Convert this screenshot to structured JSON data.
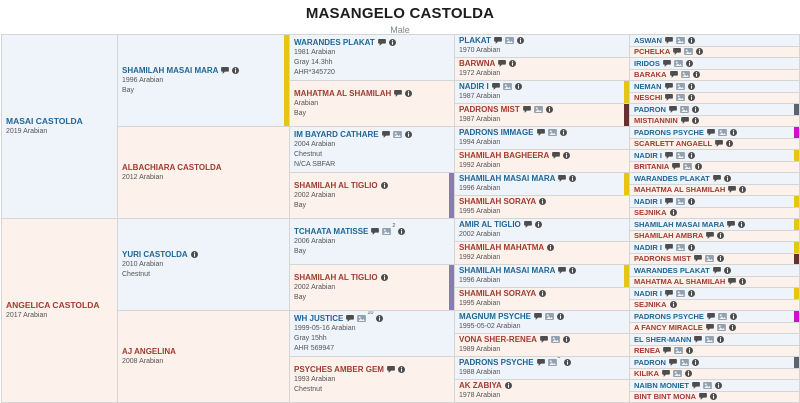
{
  "header": {
    "title": "MASANGELO CASTOLDA",
    "subtitle": "Male"
  },
  "colors": {
    "sire_bg": "#eff3fa",
    "dam_bg": "#fdf1ec",
    "sire_name": "#1f6697",
    "dam_name": "#a23b30",
    "detail_text": "#555555",
    "border": "#d5d5d5",
    "stripes": {
      "yellow": "#e5c614",
      "purple": "#867ab8",
      "maroon": "#66302e",
      "magenta": "#cf0fcf",
      "slate": "#5a6370"
    }
  },
  "pedigree": {
    "generations": [
      {
        "cells": [
          {
            "name": "MASAI CASTOLDA",
            "details": [
              "2019 Arabian"
            ],
            "line": "sire",
            "icons": []
          },
          {
            "name": "ANGELICA CASTOLDA",
            "details": [
              "2017 Arabian"
            ],
            "line": "dam",
            "icons": []
          }
        ]
      },
      {
        "cells": [
          {
            "name": "SHAMILAH MASAI MARA",
            "details": [
              "1996 Arabian",
              "Bay"
            ],
            "line": "sire",
            "icons": [
              "comment",
              "info"
            ],
            "stripe": "yellow"
          },
          {
            "name": "ALBACHIARA CASTOLDA",
            "details": [
              "2012 Arabian"
            ],
            "line": "dam",
            "icons": []
          },
          {
            "name": "YURI CASTOLDA",
            "details": [
              "2010 Arabian",
              "Chestnut"
            ],
            "line": "sire",
            "icons": [
              "info"
            ]
          },
          {
            "name": "AJ ANGELINA",
            "details": [
              "2008 Arabian"
            ],
            "line": "dam",
            "icons": []
          }
        ]
      },
      {
        "cells": [
          {
            "name": "WARANDES PLAKAT",
            "details": [
              "1981 Arabian",
              "Gray 14.3hh",
              "AHR*345720"
            ],
            "line": "sire",
            "icons": [
              "comment",
              "info"
            ]
          },
          {
            "name": "MAHATMA AL SHAMILAH",
            "details": [
              "Arabian",
              "Bay"
            ],
            "line": "dam",
            "icons": [
              "comment",
              "info"
            ]
          },
          {
            "name": "IM BAYARD CATHARE",
            "details": [
              "2004 Arabian",
              "Chestnut",
              "N/CA SBFAR"
            ],
            "line": "sire",
            "icons": [
              "comment",
              "photo",
              "info"
            ]
          },
          {
            "name": "SHAMILAH AL TIGLIO",
            "details": [
              "2002 Arabian",
              "Bay"
            ],
            "line": "dam",
            "icons": [
              "info"
            ],
            "stripe": "purple"
          },
          {
            "name": "TCHAATA MATISSE",
            "details": [
              "2006 Arabian",
              "Bay"
            ],
            "line": "sire",
            "icons": [
              "comment",
              "photo",
              "info"
            ],
            "photo_count": "2"
          },
          {
            "name": "SHAMILAH AL TIGLIO",
            "details": [
              "2002 Arabian",
              "Bay"
            ],
            "line": "dam",
            "icons": [
              "info"
            ],
            "stripe": "purple"
          },
          {
            "name": "WH JUSTICE",
            "details": [
              "1999-05-16 Arabian",
              "Gray 15hh",
              "AHR 569947"
            ],
            "line": "sire",
            "icons": [
              "comment",
              "photo",
              "info"
            ],
            "photo_count": "10"
          },
          {
            "name": "PSYCHES AMBER GEM",
            "details": [
              "1993 Arabian",
              "Chestnut"
            ],
            "line": "dam",
            "icons": [
              "comment",
              "info"
            ]
          }
        ]
      },
      {
        "cells": [
          {
            "name": "PLAKAT",
            "details": [
              "1970 Arabian"
            ],
            "line": "sire",
            "icons": [
              "comment",
              "photo",
              "info"
            ]
          },
          {
            "name": "BARWNA",
            "details": [
              "1972 Arabian"
            ],
            "line": "dam",
            "icons": [
              "comment",
              "info"
            ]
          },
          {
            "name": "NADIR I",
            "details": [
              "1987 Arabian"
            ],
            "line": "sire",
            "icons": [
              "comment",
              "photo",
              "info"
            ],
            "stripe": "yellow"
          },
          {
            "name": "PADRONS MIST",
            "details": [
              "1987 Arabian"
            ],
            "line": "dam",
            "icons": [
              "comment",
              "photo",
              "info"
            ],
            "stripe": "maroon"
          },
          {
            "name": "PADRONS IMMAGE",
            "details": [
              "1994 Arabian"
            ],
            "line": "sire",
            "icons": [
              "comment",
              "photo",
              "info"
            ]
          },
          {
            "name": "SHAMILAH BAGHEERA",
            "details": [
              "1992 Arabian"
            ],
            "line": "dam",
            "icons": [
              "comment",
              "info"
            ]
          },
          {
            "name": "SHAMILAH MASAI MARA",
            "details": [
              "1996 Arabian"
            ],
            "line": "sire",
            "icons": [
              "comment",
              "info"
            ],
            "stripe": "yellow"
          },
          {
            "name": "SHAMILAH SORAYA",
            "details": [
              "1995 Arabian"
            ],
            "line": "dam",
            "icons": [
              "info"
            ]
          },
          {
            "name": "AMIR AL TIGLIO",
            "details": [
              "2002 Arabian"
            ],
            "line": "sire",
            "icons": [
              "comment",
              "info"
            ]
          },
          {
            "name": "SHAMILAH MAHATMA",
            "details": [
              "1992 Arabian"
            ],
            "line": "dam",
            "icons": [
              "info"
            ]
          },
          {
            "name": "SHAMILAH MASAI MARA",
            "details": [
              "1996 Arabian"
            ],
            "line": "sire",
            "icons": [
              "comment",
              "info"
            ],
            "stripe": "yellow"
          },
          {
            "name": "SHAMILAH SORAYA",
            "details": [
              "1995 Arabian"
            ],
            "line": "dam",
            "icons": [
              "info"
            ]
          },
          {
            "name": "MAGNUM PSYCHE",
            "details": [
              "1995-05-02 Arabian"
            ],
            "line": "sire",
            "icons": [
              "comment",
              "photo",
              "info"
            ]
          },
          {
            "name": "VONA SHER-RENEA",
            "details": [
              "1989 Arabian"
            ],
            "line": "dam",
            "icons": [
              "comment",
              "photo",
              "info"
            ]
          },
          {
            "name": "PADRONS PSYCHE",
            "details": [
              "1988 Arabian"
            ],
            "line": "sire",
            "icons": [
              "comment",
              "photo",
              "info"
            ],
            "photo_count": "5"
          },
          {
            "name": "AK ZABIYA",
            "details": [
              "1978 Arabian"
            ],
            "line": "dam",
            "icons": [
              "info"
            ]
          }
        ]
      },
      {
        "cells": [
          {
            "name": "ASWAN",
            "line": "sire",
            "icons": [
              "comment",
              "photo",
              "info"
            ]
          },
          {
            "name": "PCHELKA",
            "line": "dam",
            "icons": [
              "comment",
              "photo",
              "info"
            ]
          },
          {
            "name": "IRIDOS",
            "line": "sire",
            "icons": [
              "comment",
              "photo",
              "info"
            ]
          },
          {
            "name": "BARAKA",
            "line": "dam",
            "icons": [
              "comment",
              "photo",
              "info"
            ]
          },
          {
            "name": "NEMAN",
            "line": "sire",
            "icons": [
              "comment",
              "photo",
              "info"
            ]
          },
          {
            "name": "NESCHI",
            "line": "dam",
            "icons": [
              "comment",
              "photo",
              "info"
            ]
          },
          {
            "name": "PADRON",
            "line": "sire",
            "icons": [
              "comment",
              "photo",
              "info"
            ],
            "stripe": "slate"
          },
          {
            "name": "MISTIANNIN",
            "line": "dam",
            "icons": [
              "comment",
              "info"
            ]
          },
          {
            "name": "PADRONS PSYCHE",
            "line": "sire",
            "icons": [
              "comment",
              "photo",
              "info"
            ],
            "stripe": "magenta"
          },
          {
            "name": "SCARLETT ANGAELL",
            "line": "dam",
            "icons": [
              "comment",
              "info"
            ]
          },
          {
            "name": "NADIR I",
            "line": "sire",
            "icons": [
              "comment",
              "photo",
              "info"
            ],
            "stripe": "yellow"
          },
          {
            "name": "BRITANIA",
            "line": "dam",
            "icons": [
              "comment",
              "photo",
              "info"
            ]
          },
          {
            "name": "WARANDES PLAKAT",
            "line": "sire",
            "icons": [
              "comment",
              "info"
            ]
          },
          {
            "name": "MAHATMA AL SHAMILAH",
            "line": "dam",
            "icons": [
              "comment",
              "info"
            ]
          },
          {
            "name": "NADIR I",
            "line": "sire",
            "icons": [
              "comment",
              "photo",
              "info"
            ],
            "stripe": "yellow"
          },
          {
            "name": "SEJNIKA",
            "line": "dam",
            "icons": [
              "info"
            ]
          },
          {
            "name": "SHAMILAH MASAI MARA",
            "line": "sire",
            "icons": [
              "comment",
              "info"
            ],
            "stripe": "yellow"
          },
          {
            "name": "SHAMILAH AMBRA",
            "line": "dam",
            "icons": [
              "comment",
              "info"
            ]
          },
          {
            "name": "NADIR I",
            "line": "sire",
            "icons": [
              "comment",
              "photo",
              "info"
            ],
            "stripe": "yellow"
          },
          {
            "name": "PADRONS MIST",
            "line": "dam",
            "icons": [
              "comment",
              "photo",
              "info"
            ],
            "stripe": "maroon"
          },
          {
            "name": "WARANDES PLAKAT",
            "line": "sire",
            "icons": [
              "comment",
              "info"
            ]
          },
          {
            "name": "MAHATMA AL SHAMILAH",
            "line": "dam",
            "icons": [
              "comment",
              "info"
            ]
          },
          {
            "name": "NADIR I",
            "line": "sire",
            "icons": [
              "comment",
              "photo",
              "info"
            ],
            "stripe": "yellow"
          },
          {
            "name": "SEJNIKA",
            "line": "dam",
            "icons": [
              "info"
            ]
          },
          {
            "name": "PADRONS PSYCHE",
            "line": "sire",
            "icons": [
              "comment",
              "photo",
              "info"
            ],
            "stripe": "magenta"
          },
          {
            "name": "A FANCY MIRACLE",
            "line": "dam",
            "icons": [
              "comment",
              "photo",
              "info"
            ]
          },
          {
            "name": "EL SHER-MANN",
            "line": "sire",
            "icons": [
              "comment",
              "photo",
              "info"
            ]
          },
          {
            "name": "RENEA",
            "line": "dam",
            "icons": [
              "comment",
              "photo",
              "info"
            ]
          },
          {
            "name": "PADRON",
            "line": "sire",
            "icons": [
              "comment",
              "photo",
              "info"
            ],
            "stripe": "slate"
          },
          {
            "name": "KILIKA",
            "line": "dam",
            "icons": [
              "comment",
              "photo",
              "info"
            ]
          },
          {
            "name": "NAIBN MONIET",
            "line": "sire",
            "icons": [
              "comment",
              "photo",
              "info"
            ]
          },
          {
            "name": "BINT BINT MONA",
            "line": "dam",
            "icons": [
              "comment",
              "info"
            ]
          }
        ]
      }
    ]
  }
}
